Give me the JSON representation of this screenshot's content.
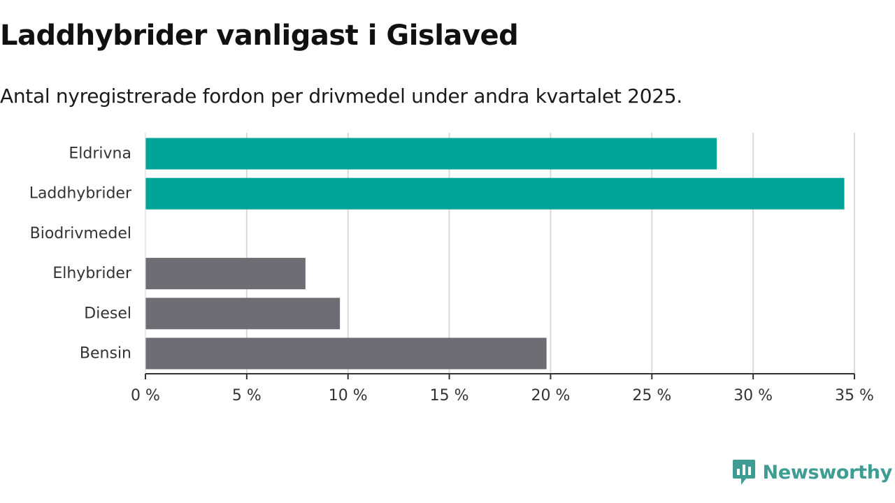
{
  "title": "Laddhybrider vanligast i Gislaved",
  "subtitle": "Antal nyregistrerade fordon per drivmedel under andra kvartalet 2025.",
  "brand": {
    "name": "Newsworthy",
    "icon": "newsworthy-logo-icon",
    "color": "#3e9c92"
  },
  "colors": {
    "highlight": "#00a398",
    "other": "#6e6d74",
    "grid": "#d9d9d9",
    "axis": "#333333"
  },
  "chart_data": {
    "type": "bar",
    "orientation": "horizontal",
    "categories": [
      "Eldrivna",
      "Laddhybrider",
      "Biodrivmedel",
      "Elhybrider",
      "Diesel",
      "Bensin"
    ],
    "values": [
      28.2,
      34.5,
      0,
      7.9,
      9.6,
      19.8
    ],
    "highlighted": [
      true,
      true,
      false,
      false,
      false,
      false
    ],
    "x_ticks": [
      0,
      5,
      10,
      15,
      20,
      25,
      30,
      35
    ],
    "x_tick_labels": [
      "0 %",
      "5 %",
      "10 %",
      "15 %",
      "20 %",
      "25 %",
      "30 %",
      "35 %"
    ],
    "xlim": [
      0,
      35
    ],
    "grid": "vertical",
    "xlabel": "",
    "ylabel": ""
  }
}
